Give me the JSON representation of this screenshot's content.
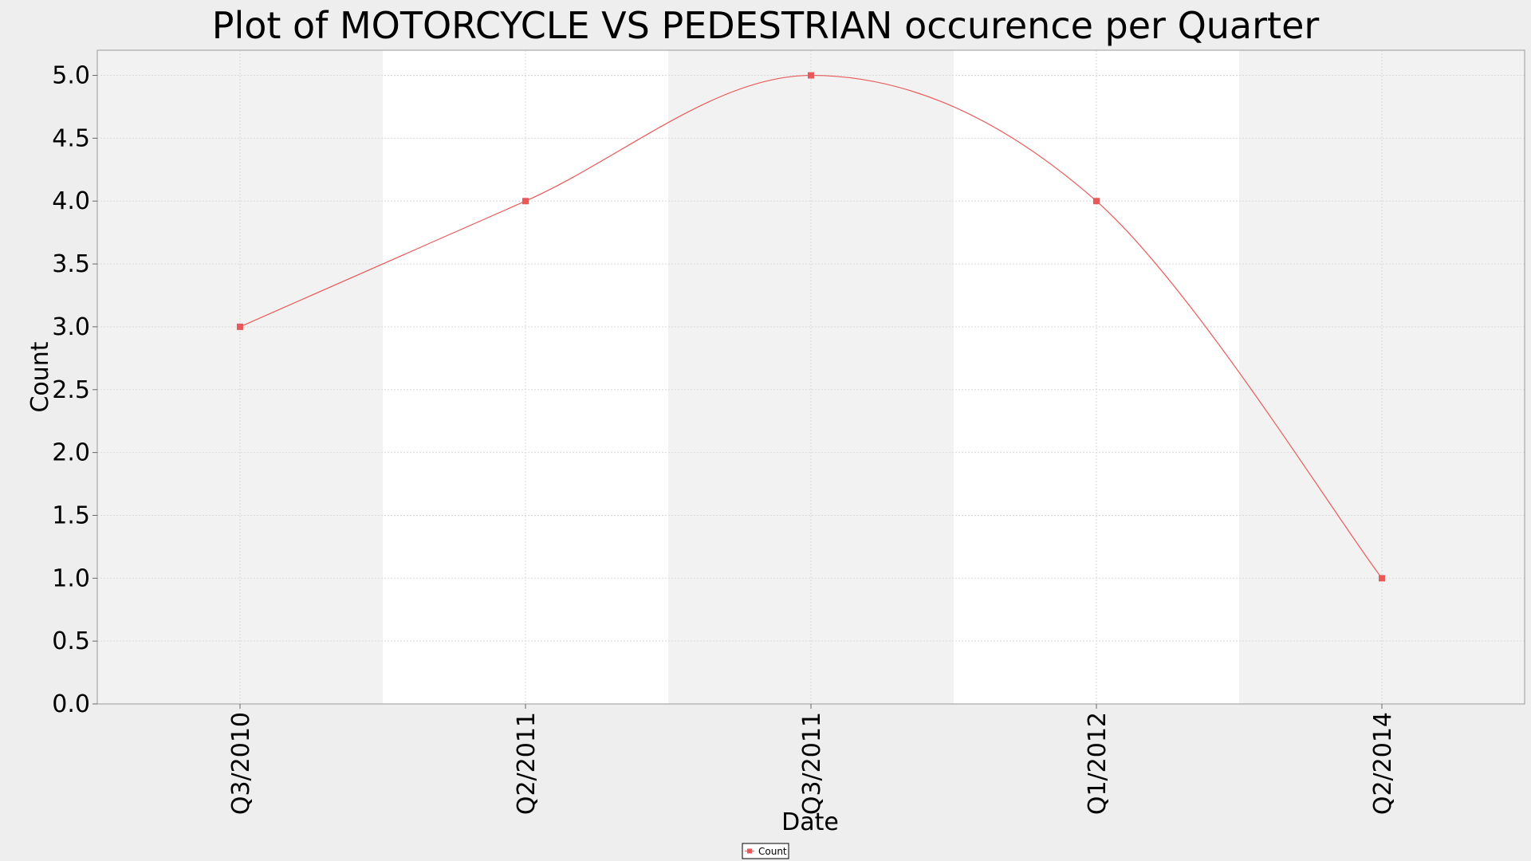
{
  "chart_data": {
    "type": "line",
    "title": "Plot of MOTORCYCLE VS PEDESTRIAN occurence per Quarter",
    "xlabel": "Date",
    "ylabel": "Count",
    "categories": [
      "Q3/2010",
      "Q2/2011",
      "Q3/2011",
      "Q1/2012",
      "Q2/2014"
    ],
    "series": [
      {
        "name": "Count",
        "values": [
          3,
          4,
          5,
          4,
          1
        ],
        "color": "#e85a5a"
      }
    ],
    "ylim": [
      0,
      5.2
    ],
    "yticks": [
      "0.0",
      "0.5",
      "1.0",
      "1.5",
      "2.0",
      "2.5",
      "3.0",
      "3.5",
      "4.0",
      "4.5",
      "5.0"
    ],
    "grid": true,
    "legend": {
      "placement": "bottom-center"
    },
    "colors": {
      "background": "#eeeeee",
      "plot_band_dark": "#f2f2f2",
      "plot_band_light": "#ffffff",
      "grid": "#d9d9d9",
      "line": "#e85a5a"
    }
  }
}
